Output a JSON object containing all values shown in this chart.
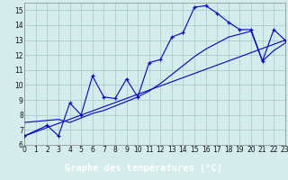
{
  "background_color": "#d4ecec",
  "grid_color": "#aacece",
  "line_color": "#0000cc",
  "xlabel": "Graphe des températures (°C)",
  "xlabel_bg": "#2255bb",
  "xlim": [
    0,
    23
  ],
  "ylim": [
    6,
    15.5
  ],
  "yticks": [
    6,
    7,
    8,
    9,
    10,
    11,
    12,
    13,
    14,
    15
  ],
  "xticks": [
    0,
    1,
    2,
    3,
    4,
    5,
    6,
    7,
    8,
    9,
    10,
    11,
    12,
    13,
    14,
    15,
    16,
    17,
    18,
    19,
    20,
    21,
    22,
    23
  ],
  "curve1_x": [
    0,
    2,
    3,
    4,
    5,
    6,
    7,
    8,
    9,
    10,
    11,
    12,
    13,
    14,
    15,
    16,
    17,
    18,
    19,
    20,
    21,
    22,
    23
  ],
  "curve1_y": [
    6.6,
    7.3,
    6.6,
    8.8,
    8.0,
    10.6,
    9.2,
    9.1,
    10.4,
    9.2,
    11.5,
    11.7,
    13.2,
    13.5,
    15.2,
    15.3,
    14.8,
    14.2,
    13.7,
    13.7,
    11.6,
    13.7,
    13.0
  ],
  "curve2_x": [
    0,
    23
  ],
  "curve2_y": [
    6.6,
    13.0
  ],
  "curve3_x": [
    0,
    3,
    4,
    5,
    6,
    7,
    8,
    9,
    10,
    11,
    12,
    13,
    14,
    15,
    16,
    17,
    18,
    19,
    20,
    21,
    22,
    23
  ],
  "curve3_y": [
    7.5,
    7.7,
    7.5,
    7.8,
    8.1,
    8.3,
    8.6,
    8.9,
    9.2,
    9.6,
    10.1,
    10.7,
    11.3,
    11.9,
    12.4,
    12.8,
    13.2,
    13.4,
    13.6,
    11.6,
    12.3,
    12.8
  ]
}
